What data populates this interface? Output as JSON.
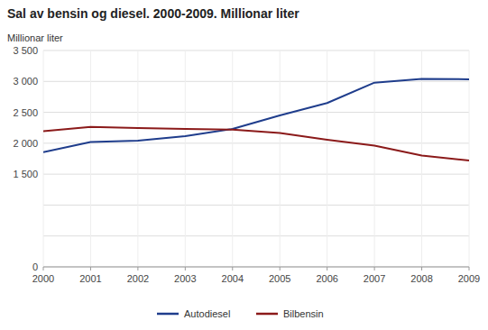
{
  "chart_data": {
    "type": "line",
    "title": "Sal av bensin og diesel. 2000-2009. Millionar liter",
    "y_label": "Millionar liter",
    "x": [
      2000,
      2001,
      2002,
      2003,
      2004,
      2005,
      2006,
      2007,
      2008,
      2009
    ],
    "series": [
      {
        "name": "Autodiesel",
        "color": "#1f3d8c",
        "values": [
          1855,
          2020,
          2040,
          2115,
          2230,
          2450,
          2650,
          2980,
          3040,
          3035
        ]
      },
      {
        "name": "Bilbensin",
        "color": "#8b1a1a",
        "values": [
          2195,
          2265,
          2245,
          2230,
          2220,
          2165,
          2055,
          1960,
          1800,
          1720
        ]
      }
    ],
    "xlim": [
      2000,
      2009
    ],
    "xticks": [
      2000,
      2001,
      2002,
      2003,
      2004,
      2005,
      2006,
      2007,
      2008,
      2009
    ],
    "ylim": [
      0,
      3500
    ],
    "yticks": [
      0,
      {
        "value": 500,
        "label": null
      },
      {
        "value": 1000,
        "label": null
      },
      {
        "value": 1500,
        "label": "1 500"
      },
      {
        "value": 2000,
        "label": "2 000"
      },
      {
        "value": 2500,
        "label": "2 500"
      },
      {
        "value": 3000,
        "label": "3 000"
      },
      {
        "value": 3500,
        "label": "3 500"
      }
    ],
    "grid": true,
    "legend": "bottom"
  }
}
